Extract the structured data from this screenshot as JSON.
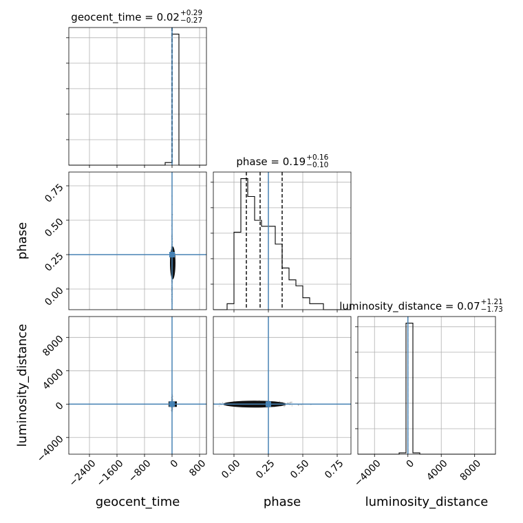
{
  "chart_data": {
    "type": "corner",
    "parameters": [
      "geocent_time",
      "phase",
      "luminosity_distance"
    ],
    "truths": {
      "geocent_time": 0.0,
      "phase": 0.25,
      "luminosity_distance": 0.0
    },
    "truth_color": "#4682b4",
    "titles": [
      {
        "param": "geocent_time",
        "prefix": "geocent_time = ",
        "median": "0.02",
        "upper": "+0.29",
        "lower": "−0.27"
      },
      {
        "param": "phase",
        "prefix": "phase = ",
        "median": "0.19",
        "upper": "+0.16",
        "lower": "−0.10"
      },
      {
        "param": "luminosity_distance",
        "prefix": "luminosity_distance = ",
        "median": "0.07",
        "upper": "+1.21",
        "lower": "−1.73"
      }
    ],
    "axes": {
      "geocent_time": {
        "label": "geocent_time",
        "range": [
          -3000,
          1000
        ],
        "ticks": [
          -2400,
          -1600,
          -800,
          0,
          800
        ],
        "tick_labels": [
          "−2400",
          "−1600",
          "−800",
          "0",
          "800"
        ]
      },
      "phase": {
        "label": "phase",
        "range": [
          -0.15,
          0.85
        ],
        "ticks": [
          0.0,
          0.25,
          0.5,
          0.75
        ],
        "tick_labels": [
          "0.00",
          "0.25",
          "0.50",
          "0.75"
        ]
      },
      "luminosity_distance": {
        "label": "luminosity_distance",
        "range": [
          -6000,
          10500
        ],
        "ticks": [
          -4000,
          0,
          4000,
          8000
        ],
        "tick_labels": [
          "−4000",
          "0",
          "4000",
          "8000"
        ]
      }
    },
    "histograms": {
      "geocent_time": {
        "bin_edges": [
          -3000,
          -2800,
          -2600,
          -2400,
          -2200,
          -2000,
          -1800,
          -1600,
          -1400,
          -1200,
          -1000,
          -800,
          -600,
          -400,
          -200,
          0,
          200,
          400,
          600,
          800,
          1000
        ],
        "counts": [
          0,
          0,
          0,
          0,
          0,
          0,
          0,
          0,
          0,
          0,
          0,
          0,
          0,
          0,
          2,
          100,
          0,
          0,
          0,
          0
        ]
      },
      "phase": {
        "bin_edges": [
          -0.15,
          -0.1,
          -0.05,
          0.0,
          0.05,
          0.1,
          0.15,
          0.2,
          0.25,
          0.3,
          0.35,
          0.4,
          0.45,
          0.5,
          0.55,
          0.6,
          0.65,
          0.7,
          0.75,
          0.8,
          0.85
        ],
        "counts": [
          0,
          0,
          1,
          13,
          22,
          19,
          15,
          14,
          14,
          11,
          7,
          5,
          4,
          2,
          1,
          1,
          0,
          0,
          0,
          0
        ]
      },
      "luminosity_distance": {
        "bin_edges": [
          -6000,
          -5175,
          -4350,
          -3525,
          -2700,
          -1875,
          -1050,
          -225,
          600,
          1425,
          2250,
          3075,
          3900,
          4725,
          5550,
          6375,
          7200,
          8025,
          8850,
          9675,
          10500
        ],
        "counts": [
          0,
          0,
          0,
          0,
          0,
          0,
          1,
          100,
          1,
          0,
          0,
          0,
          0,
          0,
          0,
          0,
          0,
          0,
          0,
          0
        ]
      }
    },
    "quantiles": {
      "geocent_time": [
        -0.25,
        0.02,
        0.31
      ],
      "phase": [
        0.09,
        0.19,
        0.35
      ],
      "luminosity_distance": [
        -1.66,
        0.07,
        1.28
      ]
    },
    "grid": true
  }
}
